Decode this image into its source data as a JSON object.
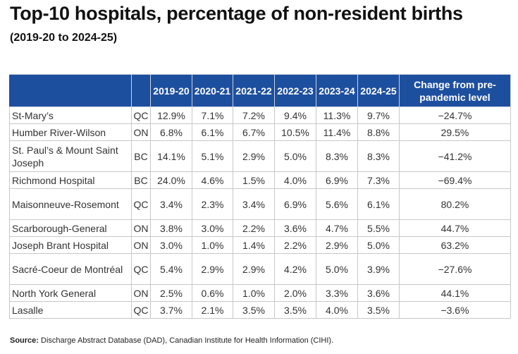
{
  "title": "Top-10 hospitals, percentage of non-resident births",
  "subtitle": "(2019-20 to 2024-25)",
  "table": {
    "headers": [
      "",
      "",
      "2019-20",
      "2020-21",
      "2021-22",
      "2022-23",
      "2023-24",
      "2024-25",
      "Change from pre-pandemic level"
    ],
    "rows": [
      {
        "name": "St-Mary’s",
        "prov": "QC",
        "values": [
          "12.9%",
          "7.1%",
          "7.2%",
          "9.4%",
          "11.3%",
          "9.7%"
        ],
        "change": "−24.7%"
      },
      {
        "name": "Humber River-Wilson",
        "prov": "ON",
        "values": [
          "6.8%",
          "6.1%",
          "6.7%",
          "10.5%",
          "11.4%",
          "8.8%"
        ],
        "change": "29.5%"
      },
      {
        "name": "St. Paul’s & Mount Saint Joseph",
        "prov": "BC",
        "values": [
          "14.1%",
          "5.1%",
          "2.9%",
          "5.0%",
          "8.3%",
          "8.3%"
        ],
        "change": "−41.2%"
      },
      {
        "name": "Richmond Hospital",
        "prov": "BC",
        "values": [
          "24.0%",
          "4.6%",
          "1.5%",
          "4.0%",
          "6.9%",
          "7.3%"
        ],
        "change": "−69.4%"
      },
      {
        "name": "Maisonneuve-Rosemont",
        "prov": "QC",
        "values": [
          "3.4%",
          "2.3%",
          "3.4%",
          "6.9%",
          "5.6%",
          "6.1%"
        ],
        "change": "80.2%"
      },
      {
        "name": "Scarborough-General",
        "prov": "ON",
        "values": [
          "3.8%",
          "3.0%",
          "2.2%",
          "3.6%",
          "4.7%",
          "5.5%"
        ],
        "change": "44.7%"
      },
      {
        "name": "Joseph Brant Hospital",
        "prov": "ON",
        "values": [
          "3.0%",
          "1.0%",
          "1.4%",
          "2.2%",
          "2.9%",
          "5.0%"
        ],
        "change": "63.2%"
      },
      {
        "name": "Sacré-Coeur de Montréal",
        "prov": "QC",
        "values": [
          "5.4%",
          "2.9%",
          "2.9%",
          "4.2%",
          "5.0%",
          "3.9%"
        ],
        "change": "−27.6%"
      },
      {
        "name": "North York General",
        "prov": "ON",
        "values": [
          "2.5%",
          "0.6%",
          "1.0%",
          "2.0%",
          "3.3%",
          "3.6%"
        ],
        "change": "44.1%"
      },
      {
        "name": "Lasalle",
        "prov": "QC",
        "values": [
          "3.7%",
          "2.1%",
          "3.5%",
          "3.5%",
          "4.0%",
          "3.5%"
        ],
        "change": "−3.6%"
      }
    ]
  },
  "source": {
    "label": "Source:",
    "text": " Discharge Abstract Database (DAD), Canadian Institute for Health Information (CIHI)."
  },
  "colors": {
    "header_bg": "#1d4f9f"
  }
}
